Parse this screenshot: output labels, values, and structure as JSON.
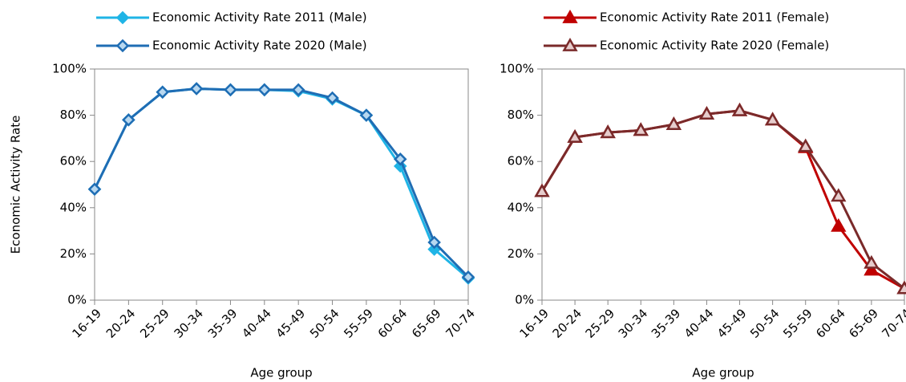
{
  "chart_data": [
    {
      "type": "line",
      "y_label": "Economic Activity Rate",
      "x_label": "Age group",
      "categories": [
        "16-19",
        "20-24",
        "25-29",
        "30-34",
        "35-39",
        "40-44",
        "45-49",
        "50-54",
        "55-59",
        "60-64",
        "65-69",
        "70-74"
      ],
      "series": [
        {
          "name": "Economic Activity Rate 2011 (Male)",
          "color": "#1fb4e6",
          "marker": "diamond",
          "marker_fill": "#1fb4e6",
          "values": [
            48,
            78,
            90,
            91.5,
            91,
            91,
            90.5,
            87,
            80,
            58,
            22,
            9.5
          ]
        },
        {
          "name": "Economic Activity Rate 2020 (Male)",
          "color": "#1f6db4",
          "marker": "diamond",
          "marker_fill": "#b8d8f0",
          "values": [
            48,
            78,
            90,
            91.5,
            91,
            91,
            91,
            87.5,
            80,
            61,
            25,
            10
          ]
        }
      ],
      "ylim": [
        0,
        100
      ],
      "yticks": [
        {
          "value": 0,
          "label": "0%"
        },
        {
          "value": 20,
          "label": "20%"
        },
        {
          "value": 40,
          "label": "40%"
        },
        {
          "value": 60,
          "label": "60%"
        },
        {
          "value": 80,
          "label": "80%"
        },
        {
          "value": 100,
          "label": "100%"
        }
      ],
      "grid": false
    },
    {
      "type": "line",
      "x_label": "Age group",
      "categories": [
        "16-19",
        "20-24",
        "25-29",
        "30-34",
        "35-39",
        "40-44",
        "45-49",
        "50-54",
        "55-59",
        "60-64",
        "65-69",
        "70-74"
      ],
      "series": [
        {
          "name": "Economic Activity Rate 2011 (Female)",
          "color": "#c00000",
          "marker": "triangle",
          "marker_fill": "#c00000",
          "values": [
            47,
            70.5,
            72.5,
            73.5,
            76,
            80.5,
            82,
            78,
            66,
            32,
            13,
            5
          ]
        },
        {
          "name": "Economic Activity Rate 2020 (Female)",
          "color": "#7a2a2a",
          "marker": "triangle",
          "marker_fill": "#e6cccc",
          "values": [
            47,
            70.5,
            72.5,
            73.5,
            76,
            80.5,
            82,
            78,
            66.5,
            45,
            16,
            5
          ]
        }
      ],
      "ylim": [
        0,
        100
      ],
      "yticks": [
        {
          "value": 0,
          "label": "0%"
        },
        {
          "value": 20,
          "label": "20%"
        },
        {
          "value": 40,
          "label": "40%"
        },
        {
          "value": 60,
          "label": "60%"
        },
        {
          "value": 80,
          "label": "80%"
        },
        {
          "value": 100,
          "label": "100%"
        }
      ],
      "grid": false
    }
  ]
}
